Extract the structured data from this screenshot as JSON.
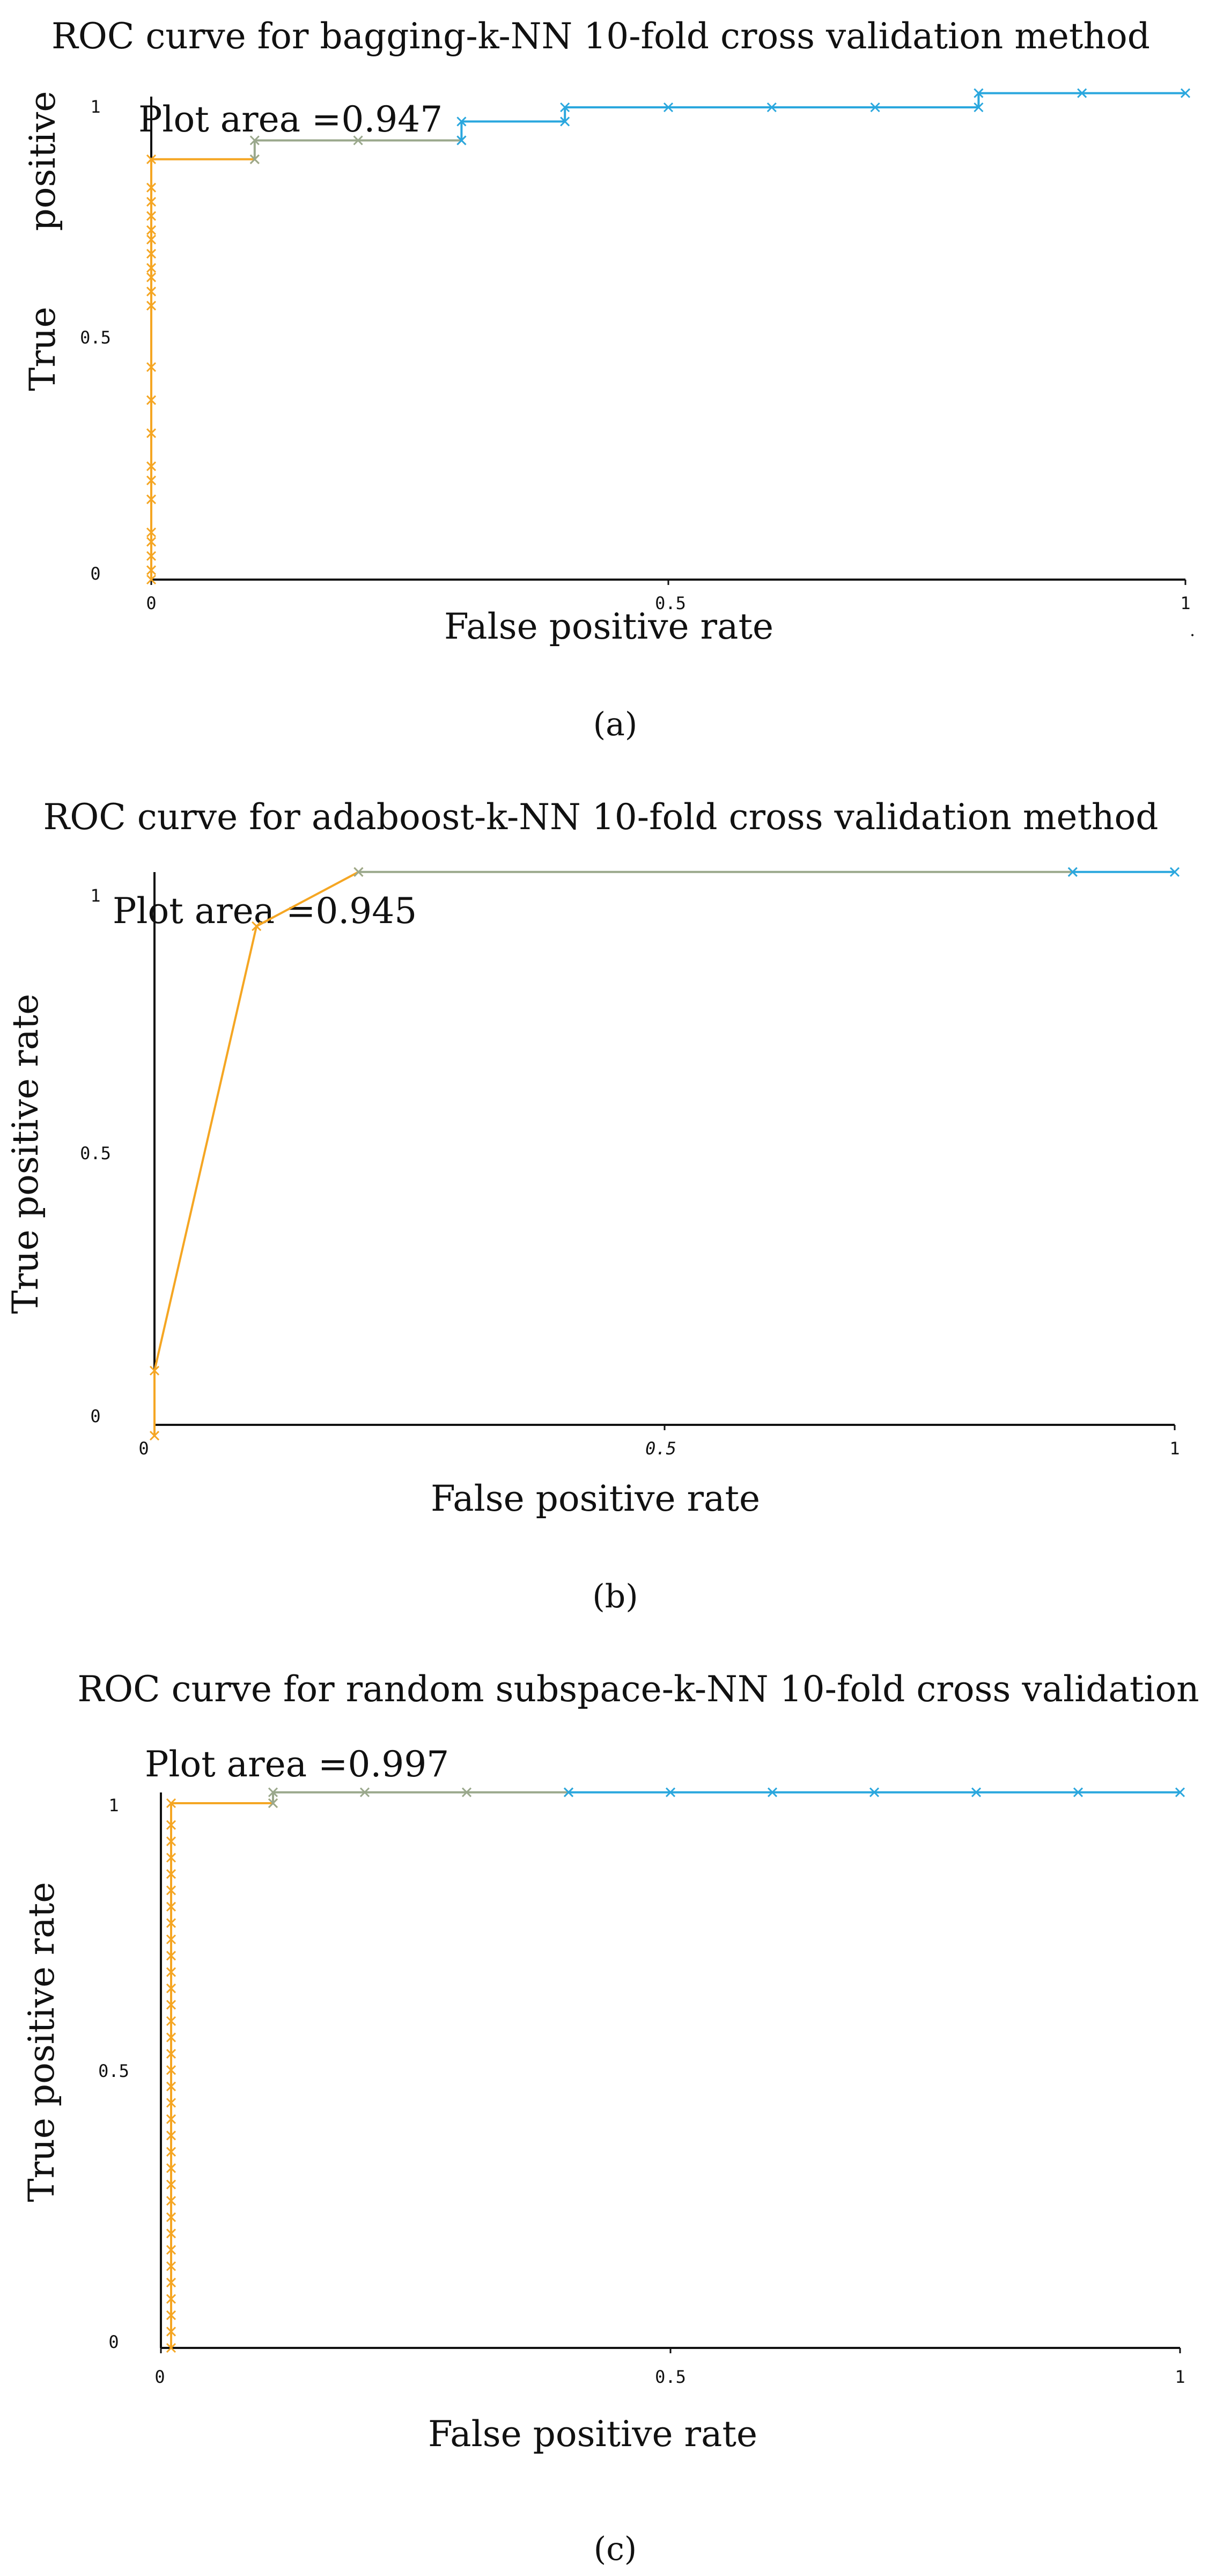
{
  "colors": {
    "early_segment": "#f5a623",
    "mid_segment": "#9aa88c",
    "late_segment": "#2aa7de",
    "axis": "#111111",
    "text": "#111111"
  },
  "chart_data": [
    {
      "type": "line",
      "panel_label": "(a)",
      "title": "ROC curve for bagging-k-NN 10-fold cross validation method",
      "xlabel": "False positive rate",
      "ylabel_lines": [
        "True",
        "positive"
      ],
      "annotation": "Plot area =0.947",
      "xlim": [
        0,
        1
      ],
      "ylim": [
        0,
        1
      ],
      "x_ticks": [
        0,
        0.5,
        1
      ],
      "x_tick_labels": [
        "0",
        "0.5",
        "1"
      ],
      "y_ticks": [
        0,
        0.5,
        1
      ],
      "y_tick_labels": [
        "0",
        "0.5",
        "1"
      ],
      "grid": false,
      "stray_mark": ".",
      "series": [
        {
          "name": "early",
          "color": "#f5a623",
          "points": [
            [
              0,
              0
            ],
            [
              0,
              0.02
            ],
            [
              0,
              0.05
            ],
            [
              0,
              0.08
            ],
            [
              0,
              0.1
            ],
            [
              0,
              0.17
            ],
            [
              0,
              0.21
            ],
            [
              0,
              0.24
            ],
            [
              0,
              0.31
            ],
            [
              0,
              0.38
            ],
            [
              0,
              0.45
            ],
            [
              0,
              0.58
            ],
            [
              0,
              0.61
            ],
            [
              0,
              0.64
            ],
            [
              0,
              0.66
            ],
            [
              0,
              0.69
            ],
            [
              0,
              0.72
            ],
            [
              0,
              0.74
            ],
            [
              0,
              0.77
            ],
            [
              0,
              0.8
            ],
            [
              0,
              0.83
            ],
            [
              0,
              0.89
            ],
            [
              0.1,
              0.89
            ]
          ]
        },
        {
          "name": "mid",
          "color": "#9aa88c",
          "points": [
            [
              0.1,
              0.89
            ],
            [
              0.1,
              0.93
            ],
            [
              0.2,
              0.93
            ],
            [
              0.3,
              0.93
            ]
          ]
        },
        {
          "name": "late",
          "color": "#2aa7de",
          "points": [
            [
              0.3,
              0.93
            ],
            [
              0.3,
              0.97
            ],
            [
              0.4,
              0.97
            ],
            [
              0.4,
              1.0
            ],
            [
              0.5,
              1.0
            ],
            [
              0.6,
              1.0
            ],
            [
              0.7,
              1.0
            ],
            [
              0.8,
              1.0
            ],
            [
              0.8,
              1.03
            ],
            [
              0.9,
              1.03
            ],
            [
              1.0,
              1.03
            ]
          ]
        }
      ]
    },
    {
      "type": "line",
      "panel_label": "(b)",
      "title": "ROC curve for adaboost-k-NN 10-fold cross validation method",
      "xlabel": "False positive rate",
      "ylabel_lines": [
        "True positive rate"
      ],
      "annotation": "Plot area =0.945",
      "xlim": [
        0,
        1
      ],
      "ylim": [
        0,
        1
      ],
      "x_ticks": [
        0,
        0.5,
        1
      ],
      "x_tick_labels": [
        "0",
        "0.5",
        "1"
      ],
      "y_ticks": [
        0,
        0.5,
        1
      ],
      "y_tick_labels": [
        "0",
        "0.5",
        "1"
      ],
      "grid": false,
      "series": [
        {
          "name": "early",
          "color": "#f5a623",
          "points": [
            [
              0,
              -0.02
            ],
            [
              0,
              0.1
            ],
            [
              0.1,
              0.92
            ],
            [
              0.2,
              1.02
            ]
          ]
        },
        {
          "name": "mid",
          "color": "#9aa88c",
          "points": [
            [
              0.2,
              1.02
            ],
            [
              0.9,
              1.02
            ]
          ]
        },
        {
          "name": "late",
          "color": "#2aa7de",
          "points": [
            [
              0.9,
              1.02
            ],
            [
              1.0,
              1.02
            ]
          ]
        }
      ]
    },
    {
      "type": "line",
      "panel_label": "(c)",
      "title": "ROC curve for random subspace-k-NN 10-fold cross validation",
      "xlabel": "False positive rate",
      "ylabel_lines": [
        "True positive rate"
      ],
      "annotation": "Plot area =0.997",
      "xlim": [
        0,
        1
      ],
      "ylim": [
        0,
        1
      ],
      "x_ticks": [
        0,
        0.5,
        1
      ],
      "x_tick_labels": [
        "0",
        "0.5",
        "1"
      ],
      "y_ticks": [
        0,
        0.5,
        1
      ],
      "y_tick_labels": [
        "0",
        "0.5",
        "1"
      ],
      "grid": false,
      "series": [
        {
          "name": "early",
          "color": "#f5a623",
          "points": [
            [
              0.01,
              0
            ],
            [
              0.01,
              0.03
            ],
            [
              0.01,
              0.06
            ],
            [
              0.01,
              0.09
            ],
            [
              0.01,
              0.12
            ],
            [
              0.01,
              0.15
            ],
            [
              0.01,
              0.18
            ],
            [
              0.01,
              0.21
            ],
            [
              0.01,
              0.24
            ],
            [
              0.01,
              0.27
            ],
            [
              0.01,
              0.3
            ],
            [
              0.01,
              0.33
            ],
            [
              0.01,
              0.36
            ],
            [
              0.01,
              0.39
            ],
            [
              0.01,
              0.42
            ],
            [
              0.01,
              0.45
            ],
            [
              0.01,
              0.48
            ],
            [
              0.01,
              0.51
            ],
            [
              0.01,
              0.54
            ],
            [
              0.01,
              0.57
            ],
            [
              0.01,
              0.6
            ],
            [
              0.01,
              0.63
            ],
            [
              0.01,
              0.66
            ],
            [
              0.01,
              0.69
            ],
            [
              0.01,
              0.72
            ],
            [
              0.01,
              0.75
            ],
            [
              0.01,
              0.78
            ],
            [
              0.01,
              0.81
            ],
            [
              0.01,
              0.84
            ],
            [
              0.01,
              0.87
            ],
            [
              0.01,
              0.9
            ],
            [
              0.01,
              0.93
            ],
            [
              0.01,
              0.96
            ],
            [
              0.01,
              1.0
            ],
            [
              0.11,
              1.0
            ]
          ]
        },
        {
          "name": "mid",
          "color": "#9aa88c",
          "points": [
            [
              0.11,
              1.0
            ],
            [
              0.11,
              1.02
            ],
            [
              0.2,
              1.02
            ],
            [
              0.3,
              1.02
            ],
            [
              0.4,
              1.02
            ]
          ]
        },
        {
          "name": "late",
          "color": "#2aa7de",
          "points": [
            [
              0.4,
              1.02
            ],
            [
              0.5,
              1.02
            ],
            [
              0.6,
              1.02
            ],
            [
              0.7,
              1.02
            ],
            [
              0.8,
              1.02
            ],
            [
              0.9,
              1.02
            ],
            [
              1.0,
              1.02
            ]
          ]
        }
      ]
    }
  ]
}
